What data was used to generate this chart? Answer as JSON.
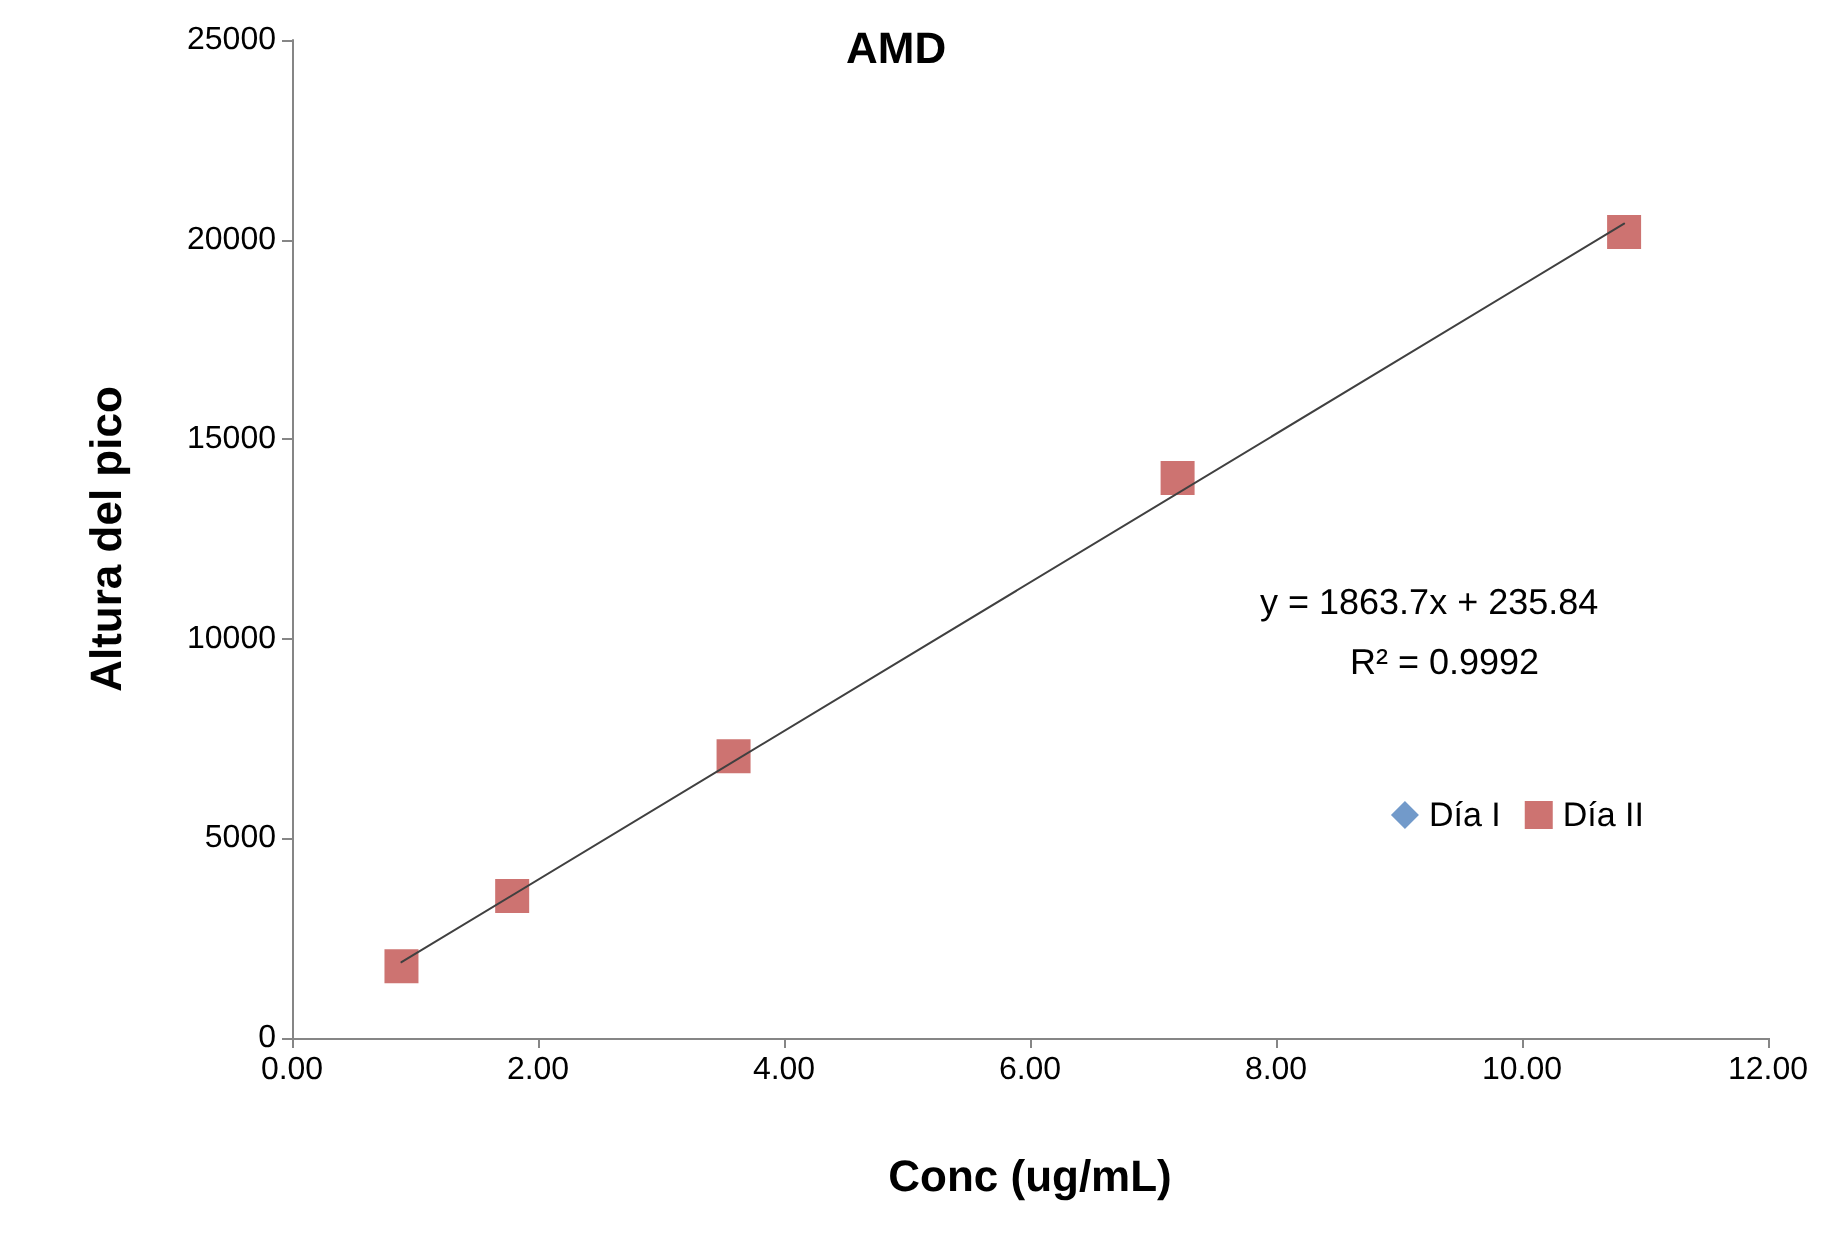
{
  "chart_data": {
    "type": "scatter",
    "title": "AMD",
    "xlabel": "Conc (ug/mL)",
    "ylabel": "Altura del pico",
    "x": [
      0.89,
      1.79,
      3.59,
      7.2,
      10.83
    ],
    "series": [
      {
        "name": "Día I",
        "color": "#4f81bd",
        "marker": "diamond",
        "values": [
          null,
          null,
          null,
          null,
          null
        ]
      },
      {
        "name": "Día II",
        "color": "#c0504d",
        "marker": "square",
        "values": [
          1800,
          3560,
          7060,
          14030,
          20190
        ]
      },
      {
        "type": "line",
        "color": "#404040",
        "marker": "none",
        "x": [
          0.89,
          10.83
        ],
        "values": [
          1900,
          20400
        ]
      }
    ],
    "annotations": [
      "y = 1863.7x + 235.84",
      "R² = 0.9992"
    ],
    "xlim": [
      0,
      12
    ],
    "xticks": [
      {
        "value": 0,
        "label": "0.00"
      },
      {
        "value": 2,
        "label": "2.00"
      },
      {
        "value": 4,
        "label": "4.00"
      },
      {
        "value": 6,
        "label": "6.00"
      },
      {
        "value": 8,
        "label": "8.00"
      },
      {
        "value": 10,
        "label": "10.00"
      },
      {
        "value": 12,
        "label": "12.00"
      }
    ],
    "ylim": [
      0,
      25000
    ],
    "yticks": [
      0,
      5000,
      10000,
      15000,
      20000,
      25000
    ],
    "grid": false,
    "legend": "right"
  }
}
